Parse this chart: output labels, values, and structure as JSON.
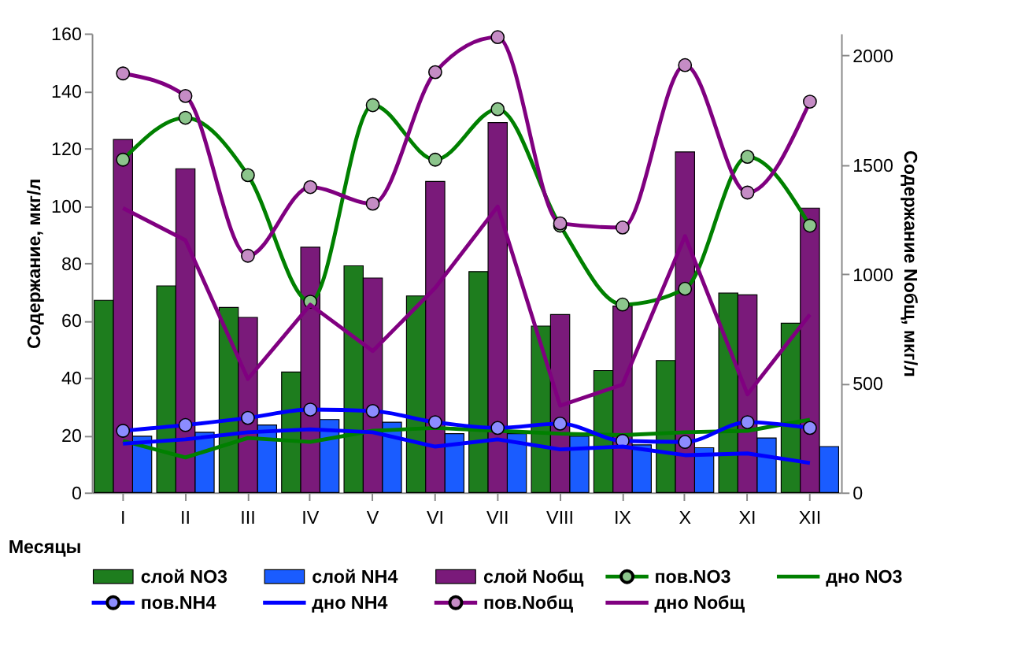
{
  "chart_data": {
    "type": "bar",
    "xlabel": "Месяцы",
    "ylabel": "Содержание, мкг/л",
    "y2label": "Содержание Nобщ, мкг/л",
    "categories": [
      "I",
      "II",
      "III",
      "IV",
      "V",
      "VI",
      "VII",
      "VIII",
      "IX",
      "X",
      "XI",
      "XII"
    ],
    "ylim": [
      0,
      160
    ],
    "yticks": [
      0,
      20,
      40,
      60,
      80,
      100,
      120,
      140,
      160
    ],
    "y2lim": [
      0,
      2100
    ],
    "y2ticks": [
      0,
      500,
      1000,
      1500,
      2000
    ],
    "grid": false,
    "legend": "bottom",
    "series": [
      {
        "name": "слой NO3",
        "color": "#1e7d1e",
        "values": [
          67,
          72,
          64.5,
          42,
          79,
          68.5,
          77,
          58,
          42.5,
          46,
          69.5,
          59
        ]
      },
      {
        "name": "слой NH4",
        "color": "#1a5cff",
        "values": [
          19.6,
          21,
          23.5,
          25.4,
          24.5,
          20.5,
          20.5,
          19.6,
          16.6,
          15.6,
          19,
          16
        ]
      },
      {
        "name": "слой Nобщ",
        "axis": "y2",
        "color": "#7a1a7a",
        "values": [
          1615,
          1481,
          801,
          1122,
          981,
          1423,
          1692,
          814,
          853,
          1558,
          904,
          1301
        ]
      },
      {
        "name": "пов.NO3",
        "type": "line",
        "marker": "circle",
        "color": "#008000",
        "values": [
          116,
          130.6,
          110.6,
          66.5,
          135,
          116,
          133.6,
          93,
          65.5,
          71,
          117,
          93
        ]
      },
      {
        "name": "дно NO3",
        "type": "line",
        "color": "#008000",
        "values": [
          18,
          12.2,
          19,
          17.6,
          21.5,
          22.5,
          21.5,
          20.5,
          20,
          21,
          21.5,
          25.4
        ]
      },
      {
        "name": "пов.NH4",
        "type": "line",
        "marker": "circle",
        "color": "#0000ff",
        "values": [
          21.5,
          23.5,
          26,
          28.9,
          28.4,
          24.5,
          22.5,
          24,
          18,
          17.6,
          24.5,
          22.5
        ]
      },
      {
        "name": "дно NH4",
        "type": "line",
        "color": "#0000ff",
        "values": [
          17,
          18.5,
          21,
          22,
          21,
          16,
          18.5,
          15,
          16,
          13,
          13.6,
          10.3
        ]
      },
      {
        "name": "пов.Nобщ",
        "type": "line",
        "axis": "y2",
        "marker": "circle",
        "color": "#800080",
        "values": [
          1917,
          1814,
          1083,
          1397,
          1321,
          1923,
          2083,
          1231,
          1212,
          1955,
          1372,
          1788
        ]
      },
      {
        "name": "дно Nобщ",
        "type": "line",
        "axis": "y2",
        "color": "#800080",
        "values": [
          1301,
          1154,
          519,
          859,
          647,
          936,
          1308,
          397,
          494,
          1173,
          449,
          814
        ]
      }
    ]
  }
}
